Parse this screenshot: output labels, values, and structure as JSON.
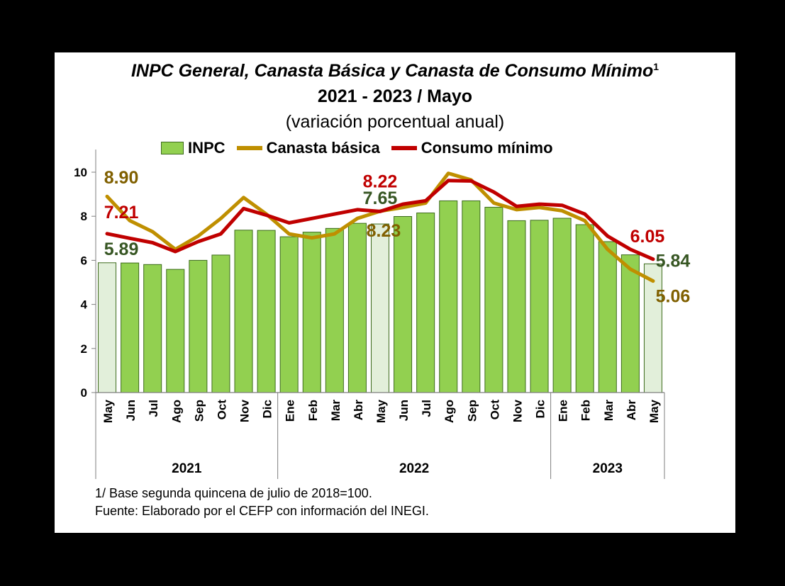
{
  "chart_data": {
    "type": "bar",
    "title": "INPC General, Canasta Básica  y Canasta de Consumo Mínimo",
    "title_superscript": "1",
    "subtitle": "2021 - 2023 / Mayo",
    "subtitle2": "(variación porcentual anual)",
    "categories": [
      "May",
      "Jun",
      "Jul",
      "Ago",
      "Sep",
      "Oct",
      "Nov",
      "Dic",
      "Ene",
      "Feb",
      "Mar",
      "Abr",
      "May",
      "Jun",
      "Jul",
      "Ago",
      "Sep",
      "Oct",
      "Nov",
      "Dic",
      "Ene",
      "Feb",
      "Mar",
      "Abr",
      "May"
    ],
    "year_groups": [
      {
        "label": "2021",
        "count": 8
      },
      {
        "label": "2022",
        "count": 12
      },
      {
        "label": "2023",
        "count": 5
      }
    ],
    "ylim": [
      0,
      10
    ],
    "yticks": [
      0,
      2,
      4,
      6,
      8,
      10
    ],
    "series": [
      {
        "name": "INPC",
        "kind": "bar",
        "color": "#92D050",
        "highlight_color": "#E2EFDA",
        "highlight_indices": [
          0,
          12,
          24
        ],
        "values": [
          5.89,
          5.88,
          5.81,
          5.59,
          6.0,
          6.24,
          7.37,
          7.36,
          7.07,
          7.28,
          7.45,
          7.68,
          7.65,
          7.99,
          8.15,
          8.7,
          8.7,
          8.41,
          7.8,
          7.82,
          7.91,
          7.62,
          6.85,
          6.25,
          5.84
        ]
      },
      {
        "name": "Canasta básica",
        "kind": "line",
        "color": "#BF8F00",
        "values": [
          8.9,
          7.8,
          7.3,
          6.5,
          7.1,
          7.9,
          8.85,
          8.1,
          7.2,
          7.02,
          7.2,
          7.9,
          8.23,
          8.4,
          8.6,
          9.95,
          9.65,
          8.6,
          8.3,
          8.4,
          8.25,
          7.8,
          6.5,
          5.6,
          5.06
        ]
      },
      {
        "name": "Consumo mínimo",
        "kind": "line",
        "color": "#C00000",
        "values": [
          7.21,
          7.0,
          6.8,
          6.4,
          6.85,
          7.2,
          8.35,
          8.05,
          7.7,
          7.9,
          8.1,
          8.3,
          8.22,
          8.55,
          8.7,
          9.62,
          9.6,
          9.1,
          8.45,
          8.55,
          8.5,
          8.1,
          7.1,
          6.5,
          6.05
        ]
      }
    ],
    "data_labels": [
      {
        "text": "8.90",
        "series": "Canasta básica",
        "index": 0,
        "color": "#806000"
      },
      {
        "text": "7.21",
        "series": "Consumo mínimo",
        "index": 0,
        "color": "#C00000"
      },
      {
        "text": "5.89",
        "series": "INPC",
        "index": 0,
        "color": "#375623"
      },
      {
        "text": "8.22",
        "series": "Consumo mínimo",
        "index": 12,
        "color": "#C00000"
      },
      {
        "text": "7.65",
        "series": "INPC",
        "index": 12,
        "color": "#375623"
      },
      {
        "text": "8.23",
        "series": "Canasta básica",
        "index": 12,
        "color": "#806000"
      },
      {
        "text": "6.05",
        "series": "Consumo mínimo",
        "index": 24,
        "color": "#C00000"
      },
      {
        "text": "5.84",
        "series": "INPC",
        "index": 24,
        "color": "#375623"
      },
      {
        "text": "5.06",
        "series": "Canasta básica",
        "index": 24,
        "color": "#806000"
      }
    ],
    "legend": [
      "INPC",
      "Canasta básica",
      "Consumo mínimo"
    ]
  },
  "footnotes": {
    "note1": "1/ Base segunda quincena de julio de 2018=100.",
    "source": "Fuente: Elaborado por el CEFP con información del INEGI."
  }
}
